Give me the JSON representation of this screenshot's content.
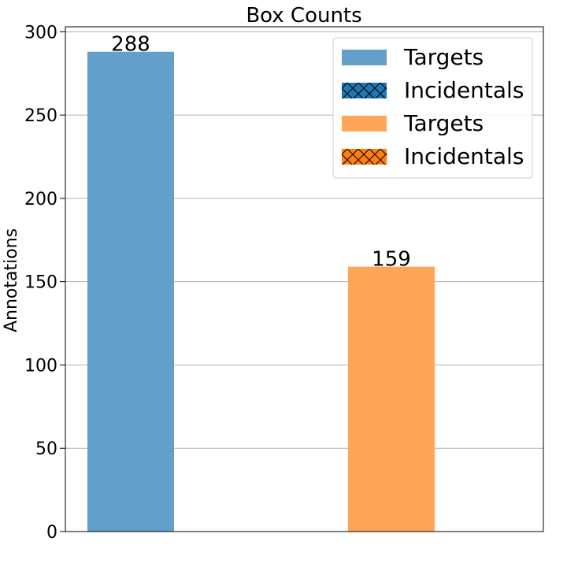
{
  "chart_data": {
    "type": "bar",
    "title": "Box Counts",
    "xlabel": "",
    "ylabel": "Annotations",
    "ylim": [
      0,
      303
    ],
    "yticks": [
      0,
      50,
      100,
      150,
      200,
      250,
      300
    ],
    "grid": "horizontal",
    "legend_position": "top-right",
    "bars": [
      {
        "value": 288,
        "label": "288",
        "color": "#62a0ca"
      },
      {
        "value": 159,
        "label": "159",
        "color": "#ffa557"
      }
    ],
    "legend": [
      {
        "label": "Targets",
        "color": "#62a0ca",
        "hatch": false
      },
      {
        "label": "Incidentals",
        "color": "#1f77b4",
        "hatch": true
      },
      {
        "label": "Targets",
        "color": "#ffa557",
        "hatch": false
      },
      {
        "label": "Incidentals",
        "color": "#ff7f0e",
        "hatch": true
      }
    ]
  }
}
